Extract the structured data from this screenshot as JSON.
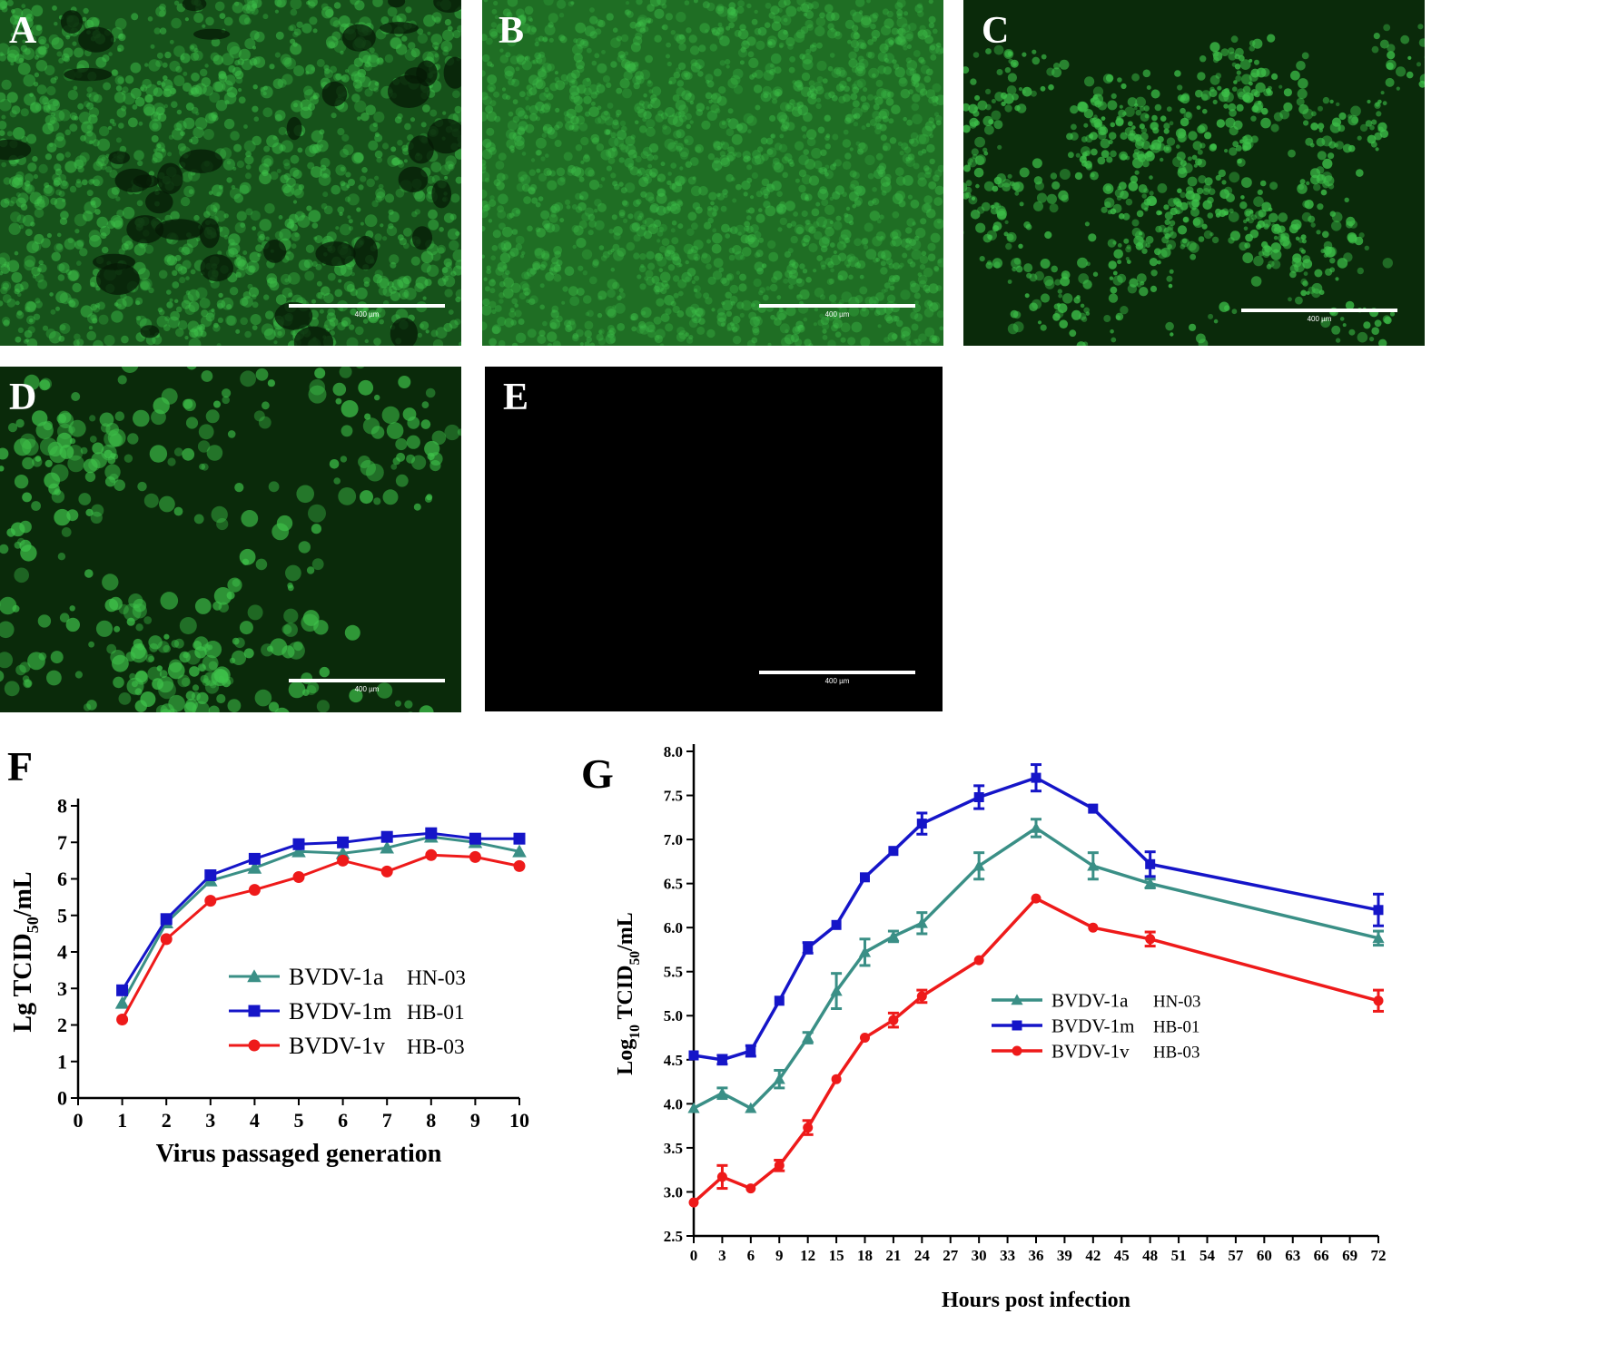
{
  "micrographs": [
    {
      "id": "A",
      "label": "A",
      "scale": "400 µm",
      "style": "dense"
    },
    {
      "id": "B",
      "label": "B",
      "scale": "400 µm",
      "style": "confluent"
    },
    {
      "id": "C",
      "label": "C",
      "scale": "400 µm",
      "style": "speckled"
    },
    {
      "id": "D",
      "label": "D",
      "scale": "400 µm",
      "style": "sparse"
    },
    {
      "id": "E",
      "label": "E",
      "scale": "400 µm",
      "style": "empty"
    }
  ],
  "colors": {
    "fluorescence_bg": "#0a2a0a",
    "fluorescence_cell": "#3ec24a",
    "series_1a": "#3a8f86",
    "series_1m": "#1515c8",
    "series_1v": "#ee1a1a"
  },
  "chart_data": [
    {
      "id": "F",
      "panel_label": "F",
      "type": "line",
      "xlabel": "Virus passaged generation",
      "ylabel_prefix": "Lg TCID",
      "ylabel_sub": "50",
      "ylabel_suffix": "/mL",
      "xlim": [
        0,
        10
      ],
      "ylim": [
        0,
        8
      ],
      "xticks": [
        0,
        1,
        2,
        3,
        4,
        5,
        6,
        7,
        8,
        9,
        10
      ],
      "yticks": [
        0,
        1,
        2,
        3,
        4,
        5,
        6,
        7,
        8
      ],
      "legend_position": "center",
      "x": [
        1,
        2,
        3,
        4,
        5,
        6,
        7,
        8,
        9,
        10
      ],
      "series": [
        {
          "name": "BVDV-1a",
          "strain": "HN-03",
          "marker": "triangle",
          "color": "#3a8f86",
          "values": [
            2.6,
            4.8,
            5.95,
            6.3,
            6.75,
            6.7,
            6.85,
            7.15,
            7.0,
            6.75
          ]
        },
        {
          "name": "BVDV-1m",
          "strain": "HB-01",
          "marker": "square",
          "color": "#1515c8",
          "values": [
            2.95,
            4.9,
            6.1,
            6.55,
            6.95,
            7.0,
            7.15,
            7.25,
            7.1,
            7.1
          ]
        },
        {
          "name": "BVDV-1v",
          "strain": "HB-03",
          "marker": "circle",
          "color": "#ee1a1a",
          "values": [
            2.15,
            4.35,
            5.4,
            5.7,
            6.05,
            6.5,
            6.2,
            6.65,
            6.6,
            6.35
          ]
        }
      ]
    },
    {
      "id": "G",
      "panel_label": "G",
      "type": "line",
      "xlabel": "Hours post infection",
      "ylabel_prefix": "Log",
      "ylabel_sub1": "10",
      "ylabel_mid": " TCID",
      "ylabel_sub2": "50",
      "ylabel_suffix": "/mL",
      "xlim": [
        0,
        72
      ],
      "ylim": [
        2.5,
        8.0
      ],
      "xticks": [
        0,
        3,
        6,
        9,
        12,
        15,
        18,
        21,
        24,
        27,
        30,
        33,
        36,
        39,
        42,
        45,
        48,
        51,
        54,
        57,
        60,
        63,
        66,
        69,
        72
      ],
      "yticks": [
        "2.5",
        "3.0",
        "3.5",
        "4.0",
        "4.5",
        "5.0",
        "5.5",
        "6.0",
        "6.5",
        "7.0",
        "7.5",
        "8.0"
      ],
      "legend_position": "lower-center",
      "x": [
        0,
        3,
        6,
        9,
        12,
        15,
        18,
        21,
        24,
        30,
        36,
        42,
        48,
        72
      ],
      "series": [
        {
          "name": "BVDV-1a",
          "strain": "HN-03",
          "marker": "triangle",
          "color": "#3a8f86",
          "values": [
            3.95,
            4.12,
            3.95,
            4.28,
            4.75,
            5.28,
            5.72,
            5.9,
            6.05,
            6.7,
            7.13,
            6.7,
            6.5,
            5.88
          ],
          "errors": [
            0.0,
            0.06,
            0.0,
            0.1,
            0.06,
            0.2,
            0.15,
            0.06,
            0.12,
            0.15,
            0.1,
            0.15,
            0.05,
            0.08
          ]
        },
        {
          "name": "BVDV-1m",
          "strain": "HB-01",
          "marker": "square",
          "color": "#1515c8",
          "values": [
            4.55,
            4.5,
            4.6,
            5.17,
            5.77,
            6.03,
            6.57,
            6.87,
            7.18,
            7.48,
            7.7,
            7.35,
            6.72,
            6.2
          ],
          "errors": [
            0.0,
            0.05,
            0.06,
            0.0,
            0.06,
            0.0,
            0.0,
            0.0,
            0.12,
            0.13,
            0.15,
            0.0,
            0.14,
            0.18
          ]
        },
        {
          "name": "BVDV-1v",
          "strain": "HB-03",
          "marker": "circle",
          "color": "#ee1a1a",
          "values": [
            2.88,
            3.17,
            3.04,
            3.3,
            3.73,
            4.28,
            4.75,
            4.95,
            5.22,
            5.63,
            6.33,
            6.0,
            5.87,
            5.17
          ],
          "errors": [
            0.0,
            0.13,
            0.0,
            0.06,
            0.08,
            0.0,
            0.0,
            0.08,
            0.07,
            0.0,
            0.0,
            0.0,
            0.08,
            0.12
          ]
        }
      ]
    }
  ]
}
